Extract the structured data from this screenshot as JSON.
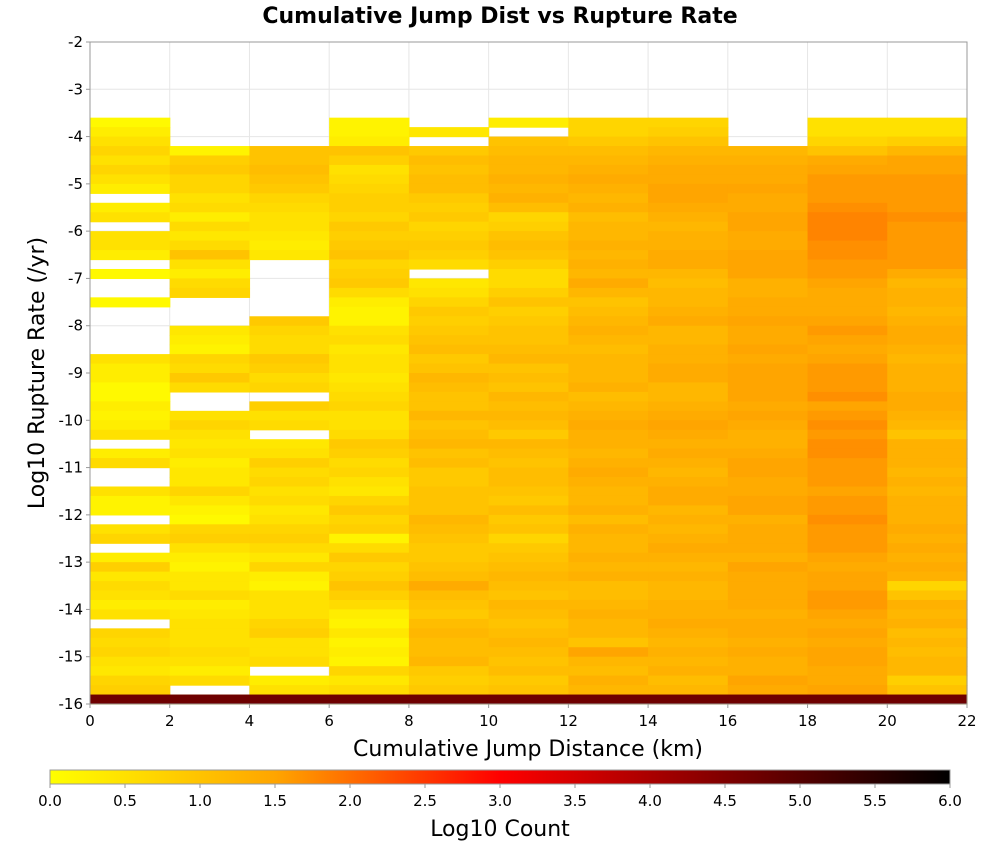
{
  "chart_data": {
    "type": "heatmap",
    "title": "Cumulative Jump Dist vs Rupture Rate",
    "xlabel": "Cumulative Jump Distance (km)",
    "ylabel": "Log10 Rupture Rate (/yr)",
    "xlim": [
      0,
      22
    ],
    "ylim": [
      -16,
      -2
    ],
    "x_ticks": [
      "0",
      "2",
      "4",
      "6",
      "8",
      "10",
      "12",
      "14",
      "16",
      "18",
      "20",
      "22"
    ],
    "y_ticks": [
      "-2",
      "-3",
      "-4",
      "-5",
      "-6",
      "-7",
      "-8",
      "-9",
      "-10",
      "-11",
      "-12",
      "-13",
      "-14",
      "-15",
      "-16"
    ],
    "x_bin_width": 2,
    "y_bin_height": 0.2,
    "x_bin_starts": [
      0,
      2,
      4,
      6,
      8,
      10,
      12,
      14,
      16,
      18,
      20
    ],
    "y_bin_tops": [
      -3.6,
      -3.8,
      -4.0,
      -4.2,
      -4.4,
      -4.6,
      -4.8,
      -5.0,
      -5.2,
      -5.4,
      -5.6,
      -5.8,
      -6.0,
      -6.2,
      -6.4,
      -6.6,
      -6.8,
      -7.0,
      -7.2,
      -7.4,
      -7.6,
      -7.8,
      -8.0,
      -8.2,
      -8.4,
      -8.6,
      -8.8,
      -9.0,
      -9.2,
      -9.4,
      -9.6,
      -9.8,
      -10.0,
      -10.2,
      -10.4,
      -10.6,
      -10.8,
      -11.0,
      -11.2,
      -11.4,
      -11.6,
      -11.8,
      -12.0,
      -12.2,
      -12.4,
      -12.6,
      -12.8,
      -13.0,
      -13.2,
      -13.4,
      -13.6,
      -13.8,
      -14.0,
      -14.2,
      -14.4,
      -14.6,
      -14.8,
      -15.0,
      -15.2,
      -15.4,
      -15.6,
      -15.8
    ],
    "log10_counts": [
      [
        0.1,
        0.3,
        0.5,
        0.7,
        0.5,
        0.7,
        0.5,
        0.3,
        null,
        0.3,
        0.5,
        null,
        0.5,
        0.5,
        0.3,
        null,
        0.1,
        null,
        null,
        0.1,
        null,
        null,
        null,
        null,
        null,
        0.5,
        0.3,
        0.3,
        0.1,
        0.1,
        0.3,
        0.2,
        0.3,
        0.5,
        null,
        0.3,
        0.6,
        null,
        null,
        0.5,
        0.2,
        0.2,
        null,
        0.5,
        0.7,
        null,
        0.3,
        0.8,
        0.4,
        0.6,
        0.5,
        0.3,
        0.5,
        null,
        0.7,
        0.6,
        0.7,
        0.5,
        0.4,
        0.7,
        0.8,
        0.5
      ],
      [
        null,
        null,
        null,
        0.2,
        0.8,
        0.9,
        0.7,
        0.7,
        0.5,
        0.6,
        0.3,
        0.6,
        0.4,
        0.6,
        1.0,
        0.5,
        0.3,
        0.6,
        0.7,
        null,
        null,
        null,
        0.4,
        0.3,
        0.2,
        0.7,
        0.6,
        0.9,
        0.6,
        null,
        null,
        0.5,
        0.7,
        0.5,
        0.4,
        0.5,
        0.3,
        0.4,
        0.4,
        0.7,
        0.4,
        0.2,
        0.1,
        0.7,
        0.8,
        0.5,
        0.3,
        0.2,
        0.4,
        0.4,
        0.6,
        0.3,
        0.4,
        0.5,
        0.5,
        0.5,
        0.6,
        0.5,
        0.3,
        0.6,
        null,
        0.8
      ],
      [
        null,
        null,
        null,
        1.0,
        1.0,
        1.1,
        1.0,
        0.9,
        0.7,
        0.6,
        0.5,
        0.5,
        0.4,
        0.3,
        0.4,
        null,
        null,
        null,
        null,
        null,
        null,
        0.9,
        0.7,
        0.6,
        0.6,
        0.9,
        0.8,
        0.6,
        0.7,
        null,
        0.8,
        0.5,
        0.6,
        null,
        0.4,
        0.5,
        0.8,
        0.6,
        0.7,
        0.5,
        0.6,
        0.4,
        0.5,
        0.7,
        0.8,
        0.6,
        0.4,
        0.7,
        0.3,
        0.2,
        0.5,
        0.5,
        0.5,
        0.7,
        0.8,
        0.5,
        0.5,
        0.6,
        null,
        0.3,
        0.5,
        0.6
      ],
      [
        0.2,
        0.2,
        0.3,
        1.0,
        0.8,
        0.5,
        0.6,
        0.7,
        0.8,
        0.8,
        0.7,
        0.9,
        0.8,
        0.9,
        1.0,
        0.7,
        0.8,
        0.9,
        0.6,
        0.3,
        0.2,
        0.2,
        0.5,
        0.6,
        0.4,
        0.5,
        0.5,
        0.4,
        0.5,
        0.6,
        0.7,
        0.5,
        0.5,
        0.6,
        0.9,
        0.8,
        0.6,
        0.7,
        0.5,
        0.4,
        0.7,
        0.9,
        0.7,
        0.8,
        0.2,
        0.6,
        0.9,
        0.7,
        0.8,
        1.0,
        0.8,
        0.6,
        0.3,
        0.2,
        0.4,
        0.2,
        0.3,
        0.2,
        0.7,
        0.4,
        0.6,
        0.3
      ],
      [
        null,
        0.4,
        null,
        0.9,
        1.1,
        1.0,
        1.1,
        1.1,
        0.9,
        0.8,
        0.9,
        0.7,
        0.8,
        0.9,
        0.8,
        0.6,
        null,
        0.4,
        0.5,
        0.7,
        0.9,
        0.8,
        0.9,
        1.0,
        1.1,
        0.9,
        1.0,
        1.2,
        1.1,
        1.0,
        1.0,
        1.2,
        1.0,
        1.1,
        1.2,
        1.0,
        1.1,
        0.9,
        0.9,
        1.0,
        1.0,
        1.0,
        1.2,
        1.1,
        1.0,
        0.9,
        0.9,
        1.0,
        1.1,
        1.4,
        1.1,
        1.0,
        0.9,
        1.1,
        1.2,
        1.1,
        1.1,
        1.2,
        0.9,
        0.8,
        0.9,
        1.0
      ],
      [
        0.3,
        null,
        1.0,
        1.1,
        1.2,
        1.2,
        1.3,
        1.2,
        1.3,
        1.1,
        0.7,
        0.8,
        1.0,
        1.1,
        1.0,
        0.8,
        0.6,
        0.6,
        0.8,
        1.0,
        0.8,
        0.9,
        1.0,
        1.0,
        1.1,
        1.2,
        1.0,
        1.1,
        1.0,
        1.2,
        1.1,
        1.2,
        1.1,
        0.9,
        1.2,
        1.1,
        1.0,
        1.1,
        1.1,
        1.0,
        0.9,
        1.1,
        0.9,
        1.0,
        0.7,
        0.9,
        1.0,
        1.1,
        1.2,
        1.1,
        1.0,
        1.2,
        1.1,
        1.0,
        1.1,
        1.2,
        1.1,
        1.0,
        1.1,
        0.9,
        1.0,
        1.1
      ],
      [
        0.7,
        0.7,
        0.9,
        1.1,
        1.2,
        1.3,
        1.4,
        1.3,
        1.2,
        1.3,
        1.1,
        1.2,
        1.2,
        1.3,
        1.2,
        1.3,
        1.2,
        1.4,
        1.2,
        1.0,
        1.1,
        1.2,
        1.3,
        1.2,
        1.1,
        1.2,
        1.2,
        1.2,
        1.3,
        1.1,
        1.2,
        1.3,
        1.4,
        1.3,
        1.3,
        1.2,
        1.3,
        1.4,
        1.3,
        1.2,
        1.2,
        1.3,
        1.1,
        1.3,
        1.2,
        1.2,
        1.3,
        1.2,
        1.3,
        1.1,
        1.1,
        1.2,
        1.3,
        1.2,
        1.2,
        1.0,
        1.5,
        1.2,
        1.1,
        1.3,
        1.2,
        1.1
      ],
      [
        0.7,
        0.8,
        1.0,
        1.2,
        1.3,
        1.4,
        1.4,
        1.5,
        1.5,
        1.4,
        1.3,
        1.2,
        1.3,
        1.3,
        1.4,
        1.4,
        1.2,
        1.1,
        1.2,
        1.2,
        1.3,
        1.4,
        1.2,
        1.2,
        1.3,
        1.3,
        1.4,
        1.4,
        1.2,
        1.2,
        1.3,
        1.4,
        1.5,
        1.4,
        1.3,
        1.4,
        1.3,
        1.2,
        1.3,
        1.4,
        1.4,
        1.2,
        1.3,
        1.2,
        1.3,
        1.4,
        1.3,
        1.2,
        1.3,
        1.2,
        1.2,
        1.3,
        1.3,
        1.4,
        1.3,
        1.2,
        1.3,
        1.2,
        1.3,
        1.1,
        1.2,
        1.2
      ],
      [
        null,
        null,
        null,
        1.2,
        1.3,
        1.4,
        1.4,
        1.5,
        1.4,
        1.4,
        1.5,
        1.5,
        1.4,
        1.4,
        1.5,
        1.5,
        1.5,
        1.3,
        1.3,
        1.4,
        1.4,
        1.5,
        1.4,
        1.4,
        1.5,
        1.4,
        1.5,
        1.5,
        1.5,
        1.5,
        1.4,
        1.5,
        1.4,
        1.3,
        1.3,
        1.4,
        1.5,
        1.5,
        1.4,
        1.4,
        1.5,
        1.5,
        1.3,
        1.4,
        1.4,
        1.4,
        1.3,
        1.5,
        1.4,
        1.4,
        1.4,
        1.4,
        1.3,
        1.4,
        1.4,
        1.3,
        1.4,
        1.3,
        1.3,
        1.5,
        1.4,
        1.3
      ],
      [
        0.5,
        0.5,
        0.7,
        1.0,
        1.4,
        1.5,
        1.6,
        1.6,
        1.6,
        1.7,
        1.8,
        1.8,
        1.8,
        1.7,
        1.7,
        1.6,
        1.6,
        1.5,
        1.4,
        1.4,
        1.4,
        1.5,
        1.6,
        1.5,
        1.4,
        1.5,
        1.6,
        1.6,
        1.6,
        1.7,
        1.5,
        1.6,
        1.7,
        1.6,
        1.7,
        1.7,
        1.6,
        1.6,
        1.6,
        1.5,
        1.6,
        1.6,
        1.7,
        1.6,
        1.6,
        1.6,
        1.5,
        1.4,
        1.5,
        1.5,
        1.6,
        1.6,
        1.5,
        1.4,
        1.5,
        1.4,
        1.5,
        1.5,
        1.4,
        1.4,
        1.5,
        1.4
      ],
      [
        0.5,
        0.5,
        0.8,
        1.2,
        1.5,
        1.5,
        1.6,
        1.6,
        1.6,
        1.6,
        1.7,
        1.6,
        1.6,
        1.6,
        1.6,
        1.6,
        1.4,
        1.2,
        1.3,
        1.3,
        1.2,
        1.3,
        1.4,
        1.4,
        1.3,
        1.2,
        1.3,
        1.3,
        1.3,
        1.4,
        1.4,
        1.3,
        1.2,
        1.0,
        1.3,
        1.3,
        1.3,
        1.2,
        1.3,
        1.2,
        1.3,
        1.3,
        1.3,
        1.4,
        1.3,
        1.4,
        1.3,
        1.4,
        1.3,
        0.7,
        1.0,
        1.3,
        1.2,
        1.3,
        1.1,
        1.2,
        1.1,
        1.2,
        1.2,
        0.8,
        1.0,
        1.1
      ]
    ],
    "colorbar": {
      "label": "Log10 Count",
      "range": [
        0,
        6
      ],
      "ticks": [
        "0.0",
        "0.5",
        "1.0",
        "1.5",
        "2.0",
        "2.5",
        "3.0",
        "3.5",
        "4.0",
        "4.5",
        "5.0",
        "5.5",
        "6.0"
      ]
    },
    "bottom_row": {
      "y_bin": [
        -16,
        -15.8
      ],
      "log10_count": 4.7
    },
    "grid": true,
    "colors": {
      "low": "#ffff00",
      "mid": "#ffa500",
      "high_mid": "#ff0000",
      "high": "#000000",
      "grid": "#e6e6e6",
      "axis": "#999999"
    }
  }
}
